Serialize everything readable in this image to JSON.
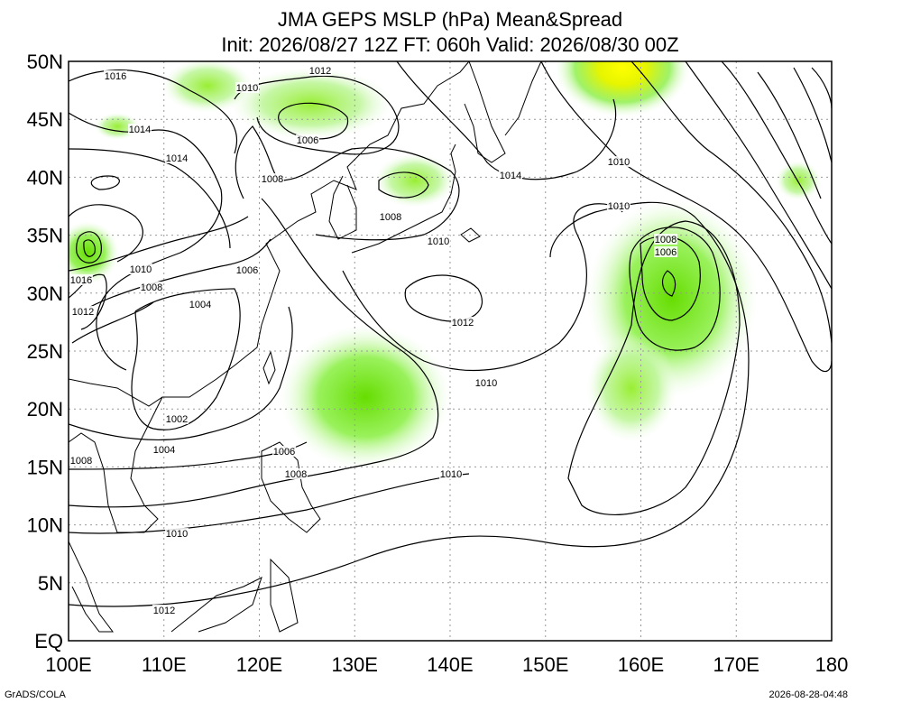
{
  "header": {
    "title": "JMA GEPS MSLP (hPa) Mean&Spread",
    "subtitle": "Init: 2026/08/27 12Z  FT: 060h  Valid: 2026/08/30 00Z"
  },
  "map": {
    "lat_ticks": [
      {
        "value": 50,
        "label": "50N"
      },
      {
        "value": 45,
        "label": "45N"
      },
      {
        "value": 40,
        "label": "40N"
      },
      {
        "value": 35,
        "label": "35N"
      },
      {
        "value": 30,
        "label": "30N"
      },
      {
        "value": 25,
        "label": "25N"
      },
      {
        "value": 20,
        "label": "20N"
      },
      {
        "value": 15,
        "label": "15N"
      },
      {
        "value": 10,
        "label": "10N"
      },
      {
        "value": 5,
        "label": "5N"
      },
      {
        "value": 0,
        "label": "EQ"
      }
    ],
    "lon_ticks": [
      {
        "value": 100,
        "label": "100E"
      },
      {
        "value": 110,
        "label": "110E"
      },
      {
        "value": 120,
        "label": "120E"
      },
      {
        "value": 130,
        "label": "130E"
      },
      {
        "value": 140,
        "label": "140E"
      },
      {
        "value": 150,
        "label": "150E"
      },
      {
        "value": 160,
        "label": "160E"
      },
      {
        "value": 170,
        "label": "170E"
      },
      180
    ],
    "contour_labels": [
      1016,
      1012,
      1010,
      1014,
      1006,
      1014,
      1010,
      1014,
      1008,
      1008,
      1010,
      1010,
      1008,
      1006,
      1010,
      1006,
      1016,
      1008,
      1004,
      1012,
      1012,
      1010,
      1002,
      1004,
      1006,
      1008,
      1008,
      1010,
      1010,
      1012
    ]
  },
  "footer": {
    "left": "GrADS/COLA",
    "right": "2026-08-28-04:48"
  }
}
